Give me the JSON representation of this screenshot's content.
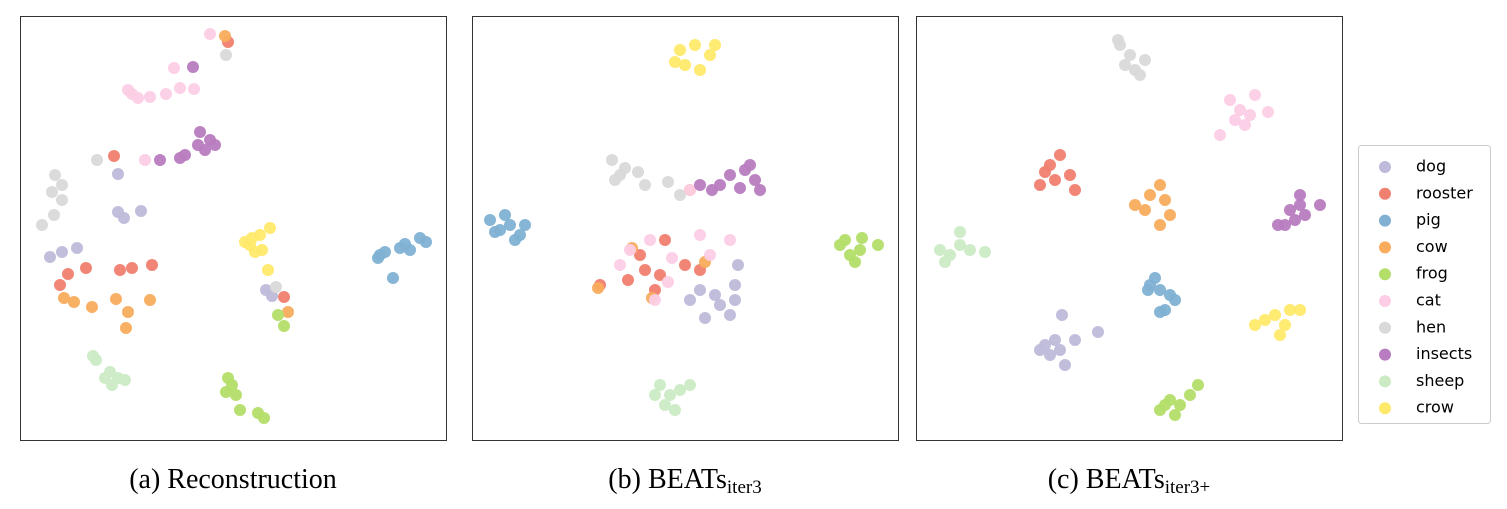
{
  "legend": {
    "names": [
      "dog",
      "rooster",
      "pig",
      "cow",
      "frog",
      "cat",
      "hen",
      "insects",
      "sheep",
      "crow"
    ],
    "colors": [
      "#bebada",
      "#f08070",
      "#80b1d3",
      "#f8ac5c",
      "#b3de69",
      "#fccde5",
      "#d9d9d9",
      "#b87cc0",
      "#ccebc5",
      "#ffe96a"
    ]
  },
  "chart_data": [
    {
      "type": "scatter",
      "caption": {
        "label": "(a)",
        "text": "Reconstruction"
      },
      "xlim": [
        0,
        426
      ],
      "ylim": [
        0,
        424
      ],
      "series": [
        {
          "x": [
            30,
            42,
            57,
            98,
            104,
            121,
            98,
            252,
            246
          ],
          "values": [
            183,
            188,
            192,
            228,
            222,
            229,
            266,
            144,
            150
          ]
        },
        {
          "x": [
            94,
            48,
            66,
            40,
            100,
            112,
            132,
            264,
            208
          ],
          "values": [
            284,
            166,
            172,
            155,
            170,
            172,
            175,
            143,
            398
          ]
        },
        {
          "x": [
            360,
            358,
            365,
            380,
            385,
            390,
            400,
            406,
            373
          ],
          "values": [
            185,
            182,
            188,
            192,
            196,
            190,
            202,
            198,
            162
          ]
        },
        {
          "x": [
            44,
            54,
            72,
            96,
            108,
            130,
            106,
            268,
            205
          ],
          "values": [
            142,
            138,
            133,
            141,
            128,
            140,
            112,
            128,
            404
          ]
        },
        {
          "x": [
            208,
            212,
            216,
            206,
            220,
            238,
            244,
            264,
            258
          ],
          "values": [
            62,
            55,
            45,
            48,
            30,
            27,
            22,
            114,
            125
          ]
        },
        {
          "x": [
            190,
            112,
            118,
            130,
            146,
            160,
            174,
            154,
            125,
            108
          ],
          "values": [
            406,
            346,
            342,
            343,
            346,
            352,
            351,
            372,
            280,
            350
          ]
        },
        {
          "x": [
            35,
            42,
            32,
            42,
            22,
            34,
            77,
            206,
            256
          ],
          "values": [
            265,
            255,
            248,
            240,
            215,
            225,
            280,
            385,
            153
          ]
        },
        {
          "x": [
            180,
            190,
            185,
            178,
            195,
            165,
            160,
            140,
            173
          ],
          "values": [
            308,
            300,
            290,
            295,
            295,
            285,
            282,
            280,
            373
          ]
        },
        {
          "x": [
            73,
            76,
            90,
            98,
            92,
            105,
            85
          ],
          "values": [
            84,
            80,
            68,
            62,
            55,
            60,
            62
          ]
        },
        {
          "x": [
            225,
            232,
            240,
            250,
            242,
            235,
            230,
            248
          ],
          "values": [
            198,
            202,
            205,
            212,
            190,
            188,
            195,
            170
          ]
        }
      ]
    },
    {
      "type": "scatter",
      "caption": {
        "label": "(b)",
        "text": "BEATs",
        "subscript": "iter3"
      },
      "xlim": [
        0,
        426
      ],
      "ylim": [
        0,
        424
      ],
      "series": [
        {
          "x": [
            228,
            243,
            263,
            248,
            233,
            258,
            218,
            266,
            263
          ],
          "values": [
            150,
            145,
            155,
            135,
            122,
            125,
            140,
            175,
            140
          ]
        },
        {
          "x": [
            128,
            156,
            173,
            188,
            168,
            183,
            213,
            228,
            193
          ],
          "values": [
            155,
            160,
            170,
            165,
            185,
            150,
            175,
            170,
            200
          ]
        },
        {
          "x": [
            18,
            28,
            38,
            48,
            33,
            43,
            53,
            23
          ],
          "values": [
            220,
            210,
            215,
            205,
            225,
            200,
            215,
            208
          ]
        },
        {
          "x": [
            126,
            180,
            233,
            160,
            218
          ],
          "values": [
            152,
            142,
            178,
            192,
            250
          ]
        },
        {
          "x": [
            368,
            378,
            388,
            383,
            373,
            406,
            390
          ],
          "values": [
            195,
            185,
            190,
            178,
            200,
            195,
            202
          ]
        },
        {
          "x": [
            158,
            178,
            200,
            228,
            258,
            196,
            183,
            148,
            218,
            238
          ],
          "values": [
            190,
            200,
            182,
            205,
            200,
            158,
            140,
            175,
            250,
            185
          ]
        },
        {
          "x": [
            140,
            153,
            143,
            166,
            173,
            148,
            196,
            208
          ],
          "values": [
            280,
            272,
            260,
            268,
            255,
            265,
            258,
            245
          ]
        },
        {
          "x": [
            258,
            273,
            283,
            288,
            268,
            248,
            278,
            228,
            240
          ],
          "values": [
            265,
            270,
            260,
            250,
            252,
            255,
            275,
            255,
            250
          ]
        },
        {
          "x": [
            188,
            198,
            208,
            193,
            203,
            183,
            218
          ],
          "values": [
            55,
            45,
            50,
            35,
            30,
            45,
            55
          ]
        },
        {
          "x": [
            208,
            223,
            238,
            213,
            228,
            203,
            243
          ],
          "values": [
            390,
            395,
            385,
            375,
            370,
            378,
            395
          ]
        }
      ]
    },
    {
      "type": "scatter",
      "caption": {
        "label": "(c)",
        "text": "BEATs",
        "subscript": "iter3+"
      },
      "xlim": [
        0,
        426
      ],
      "ylim": [
        0,
        424
      ],
      "series": [
        {
          "x": [
            129,
            144,
            139,
            149,
            159,
            182,
            146,
            134,
            124
          ],
          "values": [
            95,
            90,
            100,
            75,
            100,
            108,
            125,
            85,
            90
          ]
        },
        {
          "x": [
            124,
            134,
            144,
            154,
            159,
            139,
            129
          ],
          "values": [
            255,
            275,
            285,
            265,
            250,
            260,
            268
          ]
        },
        {
          "x": [
            234,
            244,
            254,
            239,
            259,
            249,
            244,
            232
          ],
          "values": [
            155,
            150,
            145,
            162,
            140,
            130,
            128,
            150
          ]
        },
        {
          "x": [
            234,
            244,
            249,
            254,
            244,
            219,
            229
          ],
          "values": [
            245,
            255,
            240,
            225,
            215,
            235,
            230
          ]
        },
        {
          "x": [
            244,
            254,
            264,
            259,
            274,
            282,
            249
          ],
          "values": [
            30,
            40,
            35,
            25,
            45,
            55,
            35
          ]
        },
        {
          "x": [
            314,
            324,
            334,
            319,
            329,
            304,
            352,
            339
          ],
          "values": [
            340,
            330,
            325,
            320,
            315,
            305,
            328,
            345
          ]
        },
        {
          "x": [
            204,
            214,
            209,
            219,
            229,
            224,
            202
          ],
          "values": [
            395,
            385,
            375,
            370,
            380,
            365,
            400
          ]
        },
        {
          "x": [
            374,
            384,
            379,
            369,
            389,
            384,
            404,
            362
          ],
          "values": [
            230,
            235,
            220,
            215,
            225,
            245,
            235,
            215
          ]
        },
        {
          "x": [
            24,
            34,
            44,
            54,
            69,
            44,
            29
          ],
          "values": [
            190,
            185,
            195,
            190,
            188,
            208,
            178
          ]
        },
        {
          "x": [
            349,
            359,
            369,
            374,
            364,
            339,
            384
          ],
          "values": [
            120,
            125,
            115,
            130,
            105,
            115,
            130
          ]
        }
      ]
    }
  ]
}
